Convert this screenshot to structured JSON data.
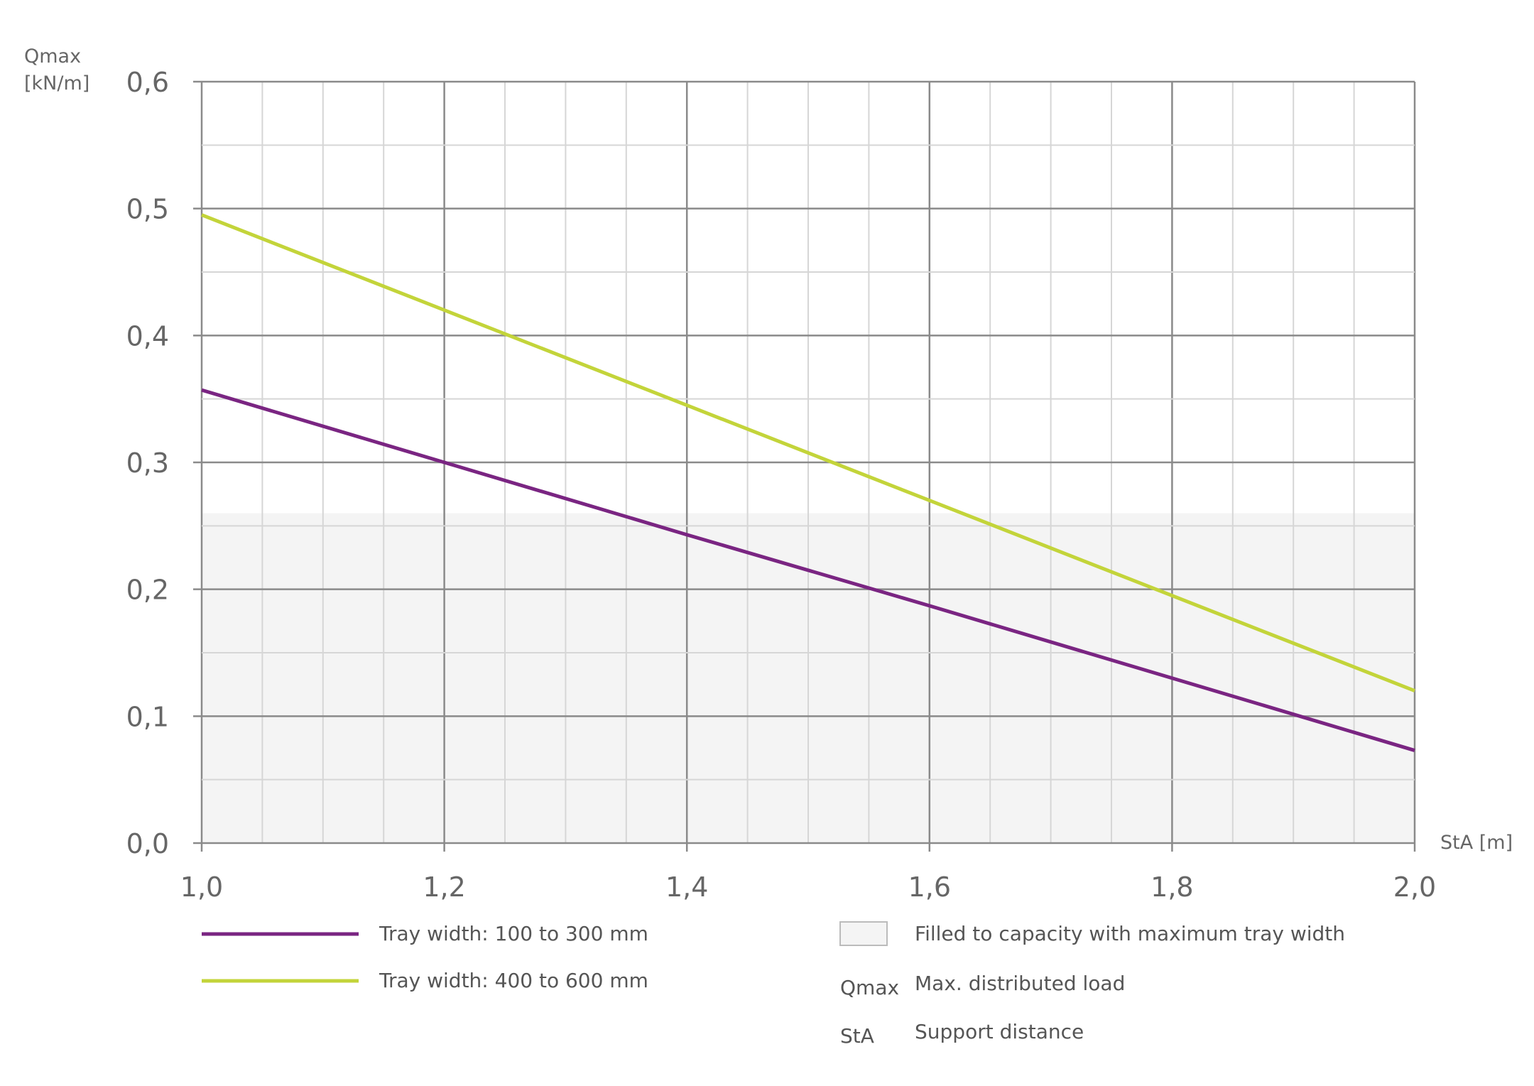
{
  "chart_data": {
    "type": "line",
    "title": "",
    "xlabel": "StA [m]",
    "ylabel_line1": "Qmax",
    "ylabel_line2": "[kN/m]",
    "xlim": [
      1.0,
      2.0
    ],
    "ylim": [
      0.0,
      0.6
    ],
    "grid": true,
    "x_ticks": [
      "1,0",
      "1,2",
      "1,4",
      "1,6",
      "1,8",
      "2,0"
    ],
    "x_tick_values": [
      1.0,
      1.2,
      1.4,
      1.6,
      1.8,
      2.0
    ],
    "y_ticks": [
      "0,0",
      "0,1",
      "0,2",
      "0,3",
      "0,4",
      "0,5",
      "0,6"
    ],
    "y_tick_values": [
      0.0,
      0.1,
      0.2,
      0.3,
      0.4,
      0.5,
      0.6
    ],
    "shaded_region": {
      "label": "Filled to capacity with maximum tray width",
      "y_max": 0.26,
      "color": "#f4f4f4"
    },
    "series": [
      {
        "name": "Tray width: 100 to 300 mm",
        "color": "#7a2582",
        "x": [
          1.0,
          1.2,
          1.4,
          1.6,
          1.8,
          2.0
        ],
        "values": [
          0.357,
          0.3,
          0.243,
          0.187,
          0.13,
          0.073
        ]
      },
      {
        "name": "Tray width: 400 to 600 mm",
        "color": "#c3d43a",
        "x": [
          1.0,
          1.2,
          1.4,
          1.6,
          1.8,
          2.0
        ],
        "values": [
          0.495,
          0.42,
          0.345,
          0.27,
          0.195,
          0.12
        ]
      }
    ],
    "legend_placement": "bottom",
    "abbreviations": [
      {
        "abbr": "Qmax",
        "meaning": "Max. distributed load"
      },
      {
        "abbr": "StA",
        "meaning": "Support distance"
      }
    ]
  }
}
